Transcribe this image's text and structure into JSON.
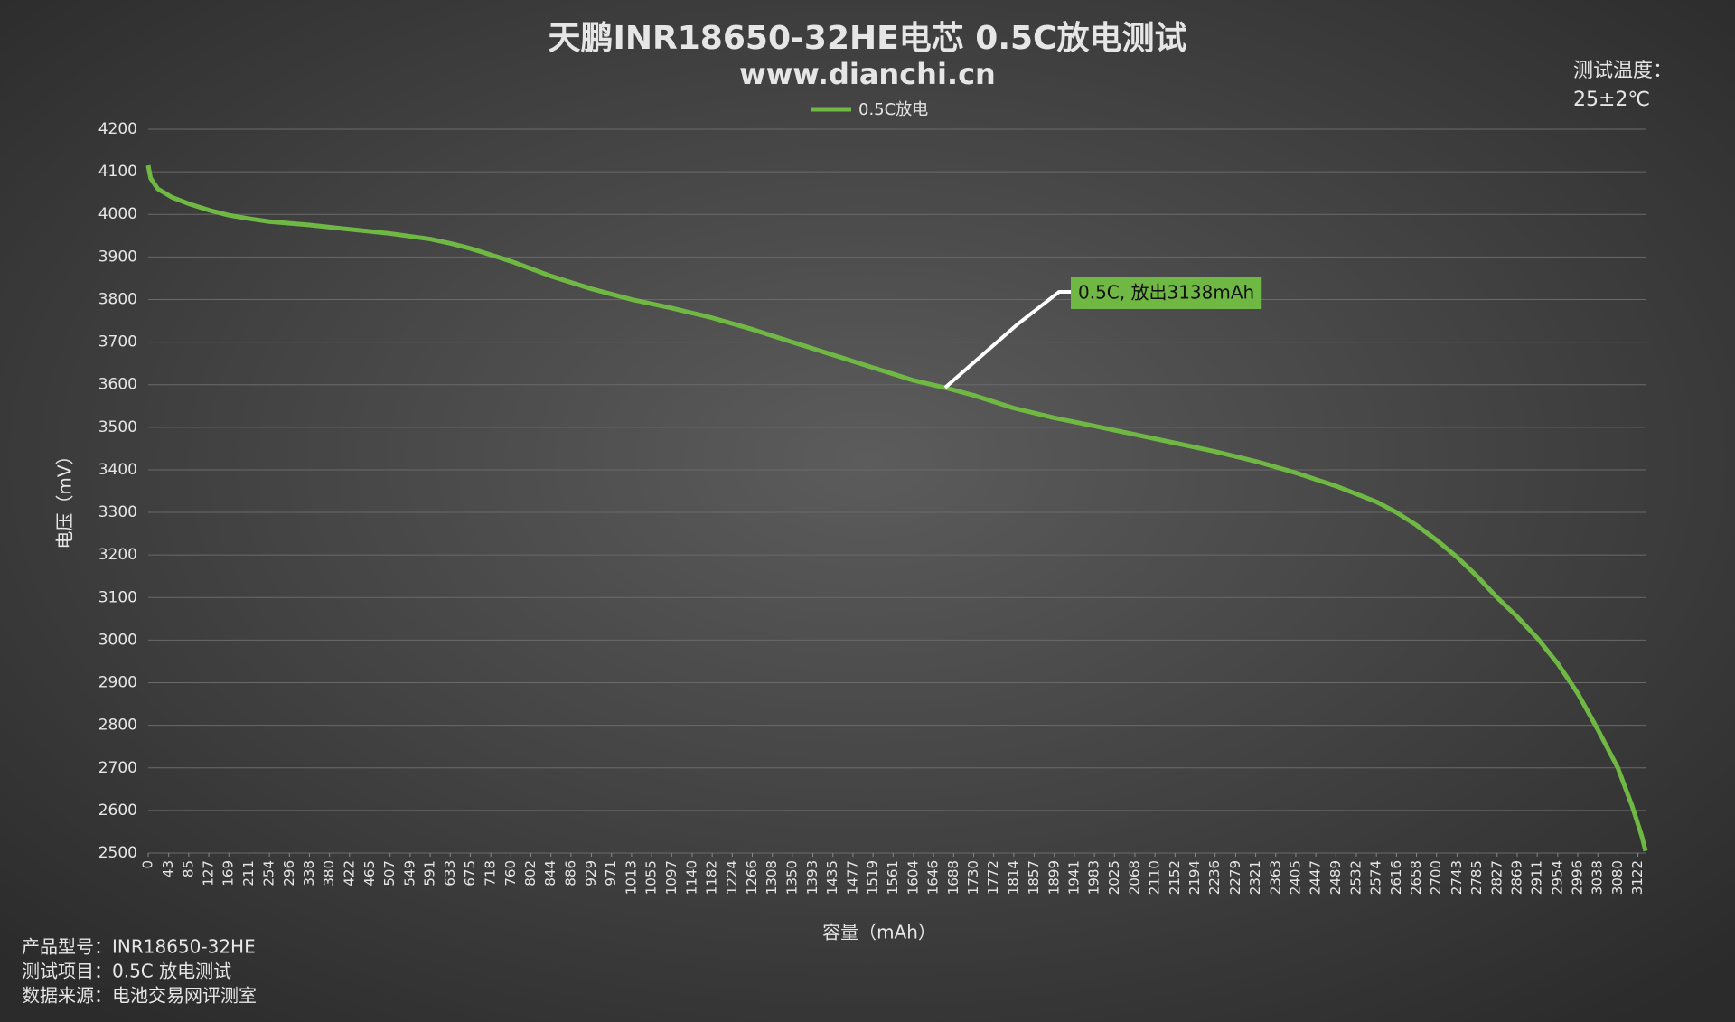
{
  "chart_data": {
    "type": "line",
    "title": "天鹏INR18650-32HE电芯 0.5C放电测试",
    "subtitle": "www.dianchi.cn",
    "x_label": "容量（mAh）",
    "y_label": "电压（mV）",
    "annotation": "0.5C, 放出3138mAh",
    "temperature_label": "测试温度：",
    "temperature": "25±2℃",
    "info": [
      "产品型号：INR18650-32HE",
      "测试项目：0.5C 放电测试",
      "数据来源：电池交易网评测室"
    ],
    "grid": true,
    "legend": "top",
    "xlim": [
      0,
      3138
    ],
    "ylim": [
      2500,
      4200
    ],
    "yticks": [
      2500,
      2600,
      2700,
      2800,
      2900,
      3000,
      3100,
      3200,
      3300,
      3400,
      3500,
      3600,
      3700,
      3800,
      3900,
      4000,
      4100,
      4200
    ],
    "xticks": [
      0,
      43,
      85,
      127,
      169,
      211,
      254,
      296,
      338,
      380,
      422,
      465,
      507,
      549,
      591,
      633,
      675,
      718,
      760,
      802,
      844,
      886,
      929,
      971,
      1013,
      1055,
      1097,
      1140,
      1182,
      1224,
      1266,
      1308,
      1350,
      1393,
      1435,
      1477,
      1519,
      1561,
      1604,
      1646,
      1688,
      1730,
      1772,
      1814,
      1857,
      1899,
      1941,
      1983,
      2025,
      2068,
      2110,
      2152,
      2194,
      2236,
      2279,
      2321,
      2363,
      2405,
      2447,
      2489,
      2532,
      2574,
      2616,
      2658,
      2700,
      2743,
      2785,
      2827,
      2869,
      2911,
      2954,
      2996,
      3038,
      3080,
      3122
    ],
    "x": [
      0,
      5,
      20,
      50,
      85,
      127,
      169,
      211,
      254,
      338,
      422,
      507,
      591,
      633,
      675,
      718,
      760,
      844,
      929,
      1013,
      1097,
      1182,
      1266,
      1350,
      1435,
      1519,
      1604,
      1670,
      1730,
      1814,
      1899,
      1983,
      2068,
      2152,
      2236,
      2321,
      2405,
      2489,
      2574,
      2616,
      2658,
      2700,
      2743,
      2785,
      2827,
      2869,
      2911,
      2954,
      2996,
      3038,
      3080,
      3110,
      3130,
      3138
    ],
    "series": [
      {
        "name": "0.5C放电",
        "color": "#70b844",
        "values": [
          4115,
          4085,
          4060,
          4040,
          4025,
          4010,
          3998,
          3990,
          3983,
          3975,
          3965,
          3955,
          3942,
          3932,
          3920,
          3905,
          3890,
          3855,
          3825,
          3800,
          3780,
          3757,
          3730,
          3700,
          3670,
          3640,
          3610,
          3593,
          3575,
          3545,
          3522,
          3503,
          3483,
          3463,
          3443,
          3420,
          3393,
          3362,
          3325,
          3300,
          3270,
          3235,
          3195,
          3150,
          3100,
          3055,
          3005,
          2945,
          2875,
          2790,
          2700,
          2610,
          2540,
          2505
        ]
      }
    ]
  }
}
